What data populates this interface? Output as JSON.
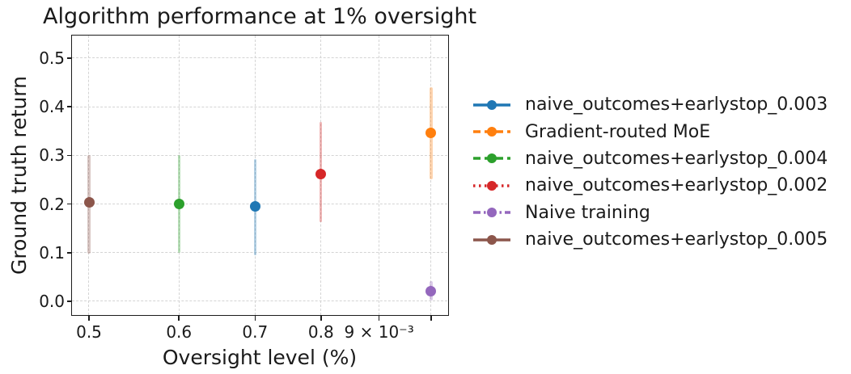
{
  "chart_data": {
    "type": "scatter",
    "title": "Algorithm performance at 1% oversight",
    "xlabel": "Oversight level (%)",
    "ylabel": "Ground truth return",
    "x_scale": "log",
    "xlim": [
      0.00483,
      0.01034
    ],
    "ylim": [
      -0.028,
      0.547
    ],
    "grid": true,
    "grid_style": "dashed",
    "legend_position": "right-outside",
    "marker": "circle-with-vertical-error-bar",
    "x_ticks": [
      {
        "label": "0.5",
        "value": 0.005
      },
      {
        "label": "0.6",
        "value": 0.006
      },
      {
        "label": "0.7",
        "value": 0.007
      },
      {
        "label": "0.8",
        "value": 0.008
      },
      {
        "label": "9 × 10⁻³",
        "value": 0.009
      },
      {
        "label": "",
        "value": 0.01
      }
    ],
    "y_ticks": [
      {
        "label": "0.0",
        "value": 0.0
      },
      {
        "label": "0.1",
        "value": 0.1
      },
      {
        "label": "0.2",
        "value": 0.2
      },
      {
        "label": "0.3",
        "value": 0.3
      },
      {
        "label": "0.4",
        "value": 0.4
      },
      {
        "label": "0.5",
        "value": 0.5
      }
    ],
    "series": [
      {
        "name": "naive_outcomes+earlystop_0.003",
        "color": "#1f77b4",
        "linestyle": "solid",
        "x": 0.007,
        "y": 0.195,
        "err_low": 0.094,
        "err_high": 0.293
      },
      {
        "name": "Gradient-routed MoE",
        "color": "#ff7f0e",
        "linestyle": "dashed",
        "x": 0.01,
        "y": 0.347,
        "err_low": 0.251,
        "err_high": 0.44
      },
      {
        "name": "naive_outcomes+earlystop_0.004",
        "color": "#2ca02c",
        "linestyle": "dashed",
        "x": 0.006,
        "y": 0.2,
        "err_low": 0.099,
        "err_high": 0.301
      },
      {
        "name": "naive_outcomes+earlystop_0.002",
        "color": "#d62728",
        "linestyle": "dotted",
        "x": 0.008,
        "y": 0.262,
        "err_low": 0.163,
        "err_high": 0.368
      },
      {
        "name": "Naive training",
        "color": "#9467bd",
        "linestyle": "dashdot",
        "x": 0.01,
        "y": 0.02,
        "err_low": 0.002,
        "err_high": 0.042
      },
      {
        "name": "naive_outcomes+earlystop_0.005",
        "color": "#8c564b",
        "linestyle": "solid",
        "x": 0.005,
        "y": 0.203,
        "err_low": 0.098,
        "err_high": 0.301
      }
    ]
  }
}
